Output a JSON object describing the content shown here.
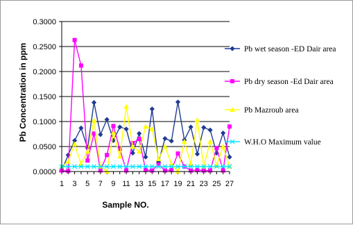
{
  "chart_data": {
    "type": "line",
    "title": "",
    "xlabel": "Sample NO.",
    "ylabel": "Pb Concentration in ppm",
    "ylim": [
      0,
      0.3
    ],
    "yticks": [
      "0.0000",
      "0.0500",
      "0.1000",
      "0.1500",
      "0.2000",
      "0.2500",
      "0.3000"
    ],
    "x": [
      1,
      2,
      3,
      4,
      5,
      6,
      7,
      8,
      9,
      10,
      11,
      12,
      13,
      14,
      15,
      16,
      17,
      18,
      19,
      20,
      21,
      22,
      23,
      24,
      25,
      26,
      27
    ],
    "xtick_labels": [
      "1",
      "3",
      "5",
      "7",
      "9",
      "11",
      "13",
      "15",
      "17",
      "19",
      "21",
      "23",
      "25",
      "27"
    ],
    "grid": "horizontal",
    "legend_position": "right",
    "series": [
      {
        "name": "Pb wet season -ED Dair area",
        "color": "#1f3a93",
        "marker": "diamond",
        "values": [
          0.002,
          0.033,
          0.062,
          0.087,
          0.047,
          0.138,
          0.074,
          0.104,
          0.062,
          0.089,
          0.085,
          0.037,
          0.076,
          0.029,
          0.125,
          0.019,
          0.066,
          0.061,
          0.139,
          0.063,
          0.089,
          0.035,
          0.088,
          0.083,
          0.037,
          0.077,
          0.029
        ]
      },
      {
        "name": "Pb dry season -Ed Dair area",
        "color": "#ff00ff",
        "marker": "square",
        "values": [
          0.002,
          0.001,
          0.263,
          0.212,
          0.022,
          0.076,
          0.002,
          0.033,
          0.091,
          0.045,
          0.002,
          0.057,
          0.065,
          0.003,
          0.002,
          0.014,
          0.002,
          0.003,
          0.036,
          0.01,
          0.002,
          0.003,
          0.002,
          0.002,
          0.047,
          0.002,
          0.09
        ]
      },
      {
        "name": "Pb Mazroub area",
        "color": "#ffff00",
        "marker": "triangle",
        "values": [
          0.01,
          0.02,
          0.055,
          0.015,
          0.04,
          0.102,
          0.01,
          0.0,
          0.078,
          0.03,
          0.13,
          0.05,
          0.04,
          0.09,
          0.085,
          0.025,
          0.05,
          0.015,
          0.0,
          0.06,
          0.015,
          0.103,
          0.01,
          0.06,
          0.012,
          0.05,
          0.01
        ]
      },
      {
        "name": "W.H.O Maximum value",
        "color": "#00e5ff",
        "marker": "x",
        "values": [
          0.01,
          0.01,
          0.01,
          0.01,
          0.01,
          0.01,
          0.01,
          0.01,
          0.01,
          0.01,
          0.01,
          0.01,
          0.01,
          0.01,
          0.01,
          0.01,
          0.01,
          0.01,
          0.01,
          0.01,
          0.01,
          0.01,
          0.01,
          0.01,
          0.01,
          0.01,
          0.01
        ]
      }
    ]
  }
}
